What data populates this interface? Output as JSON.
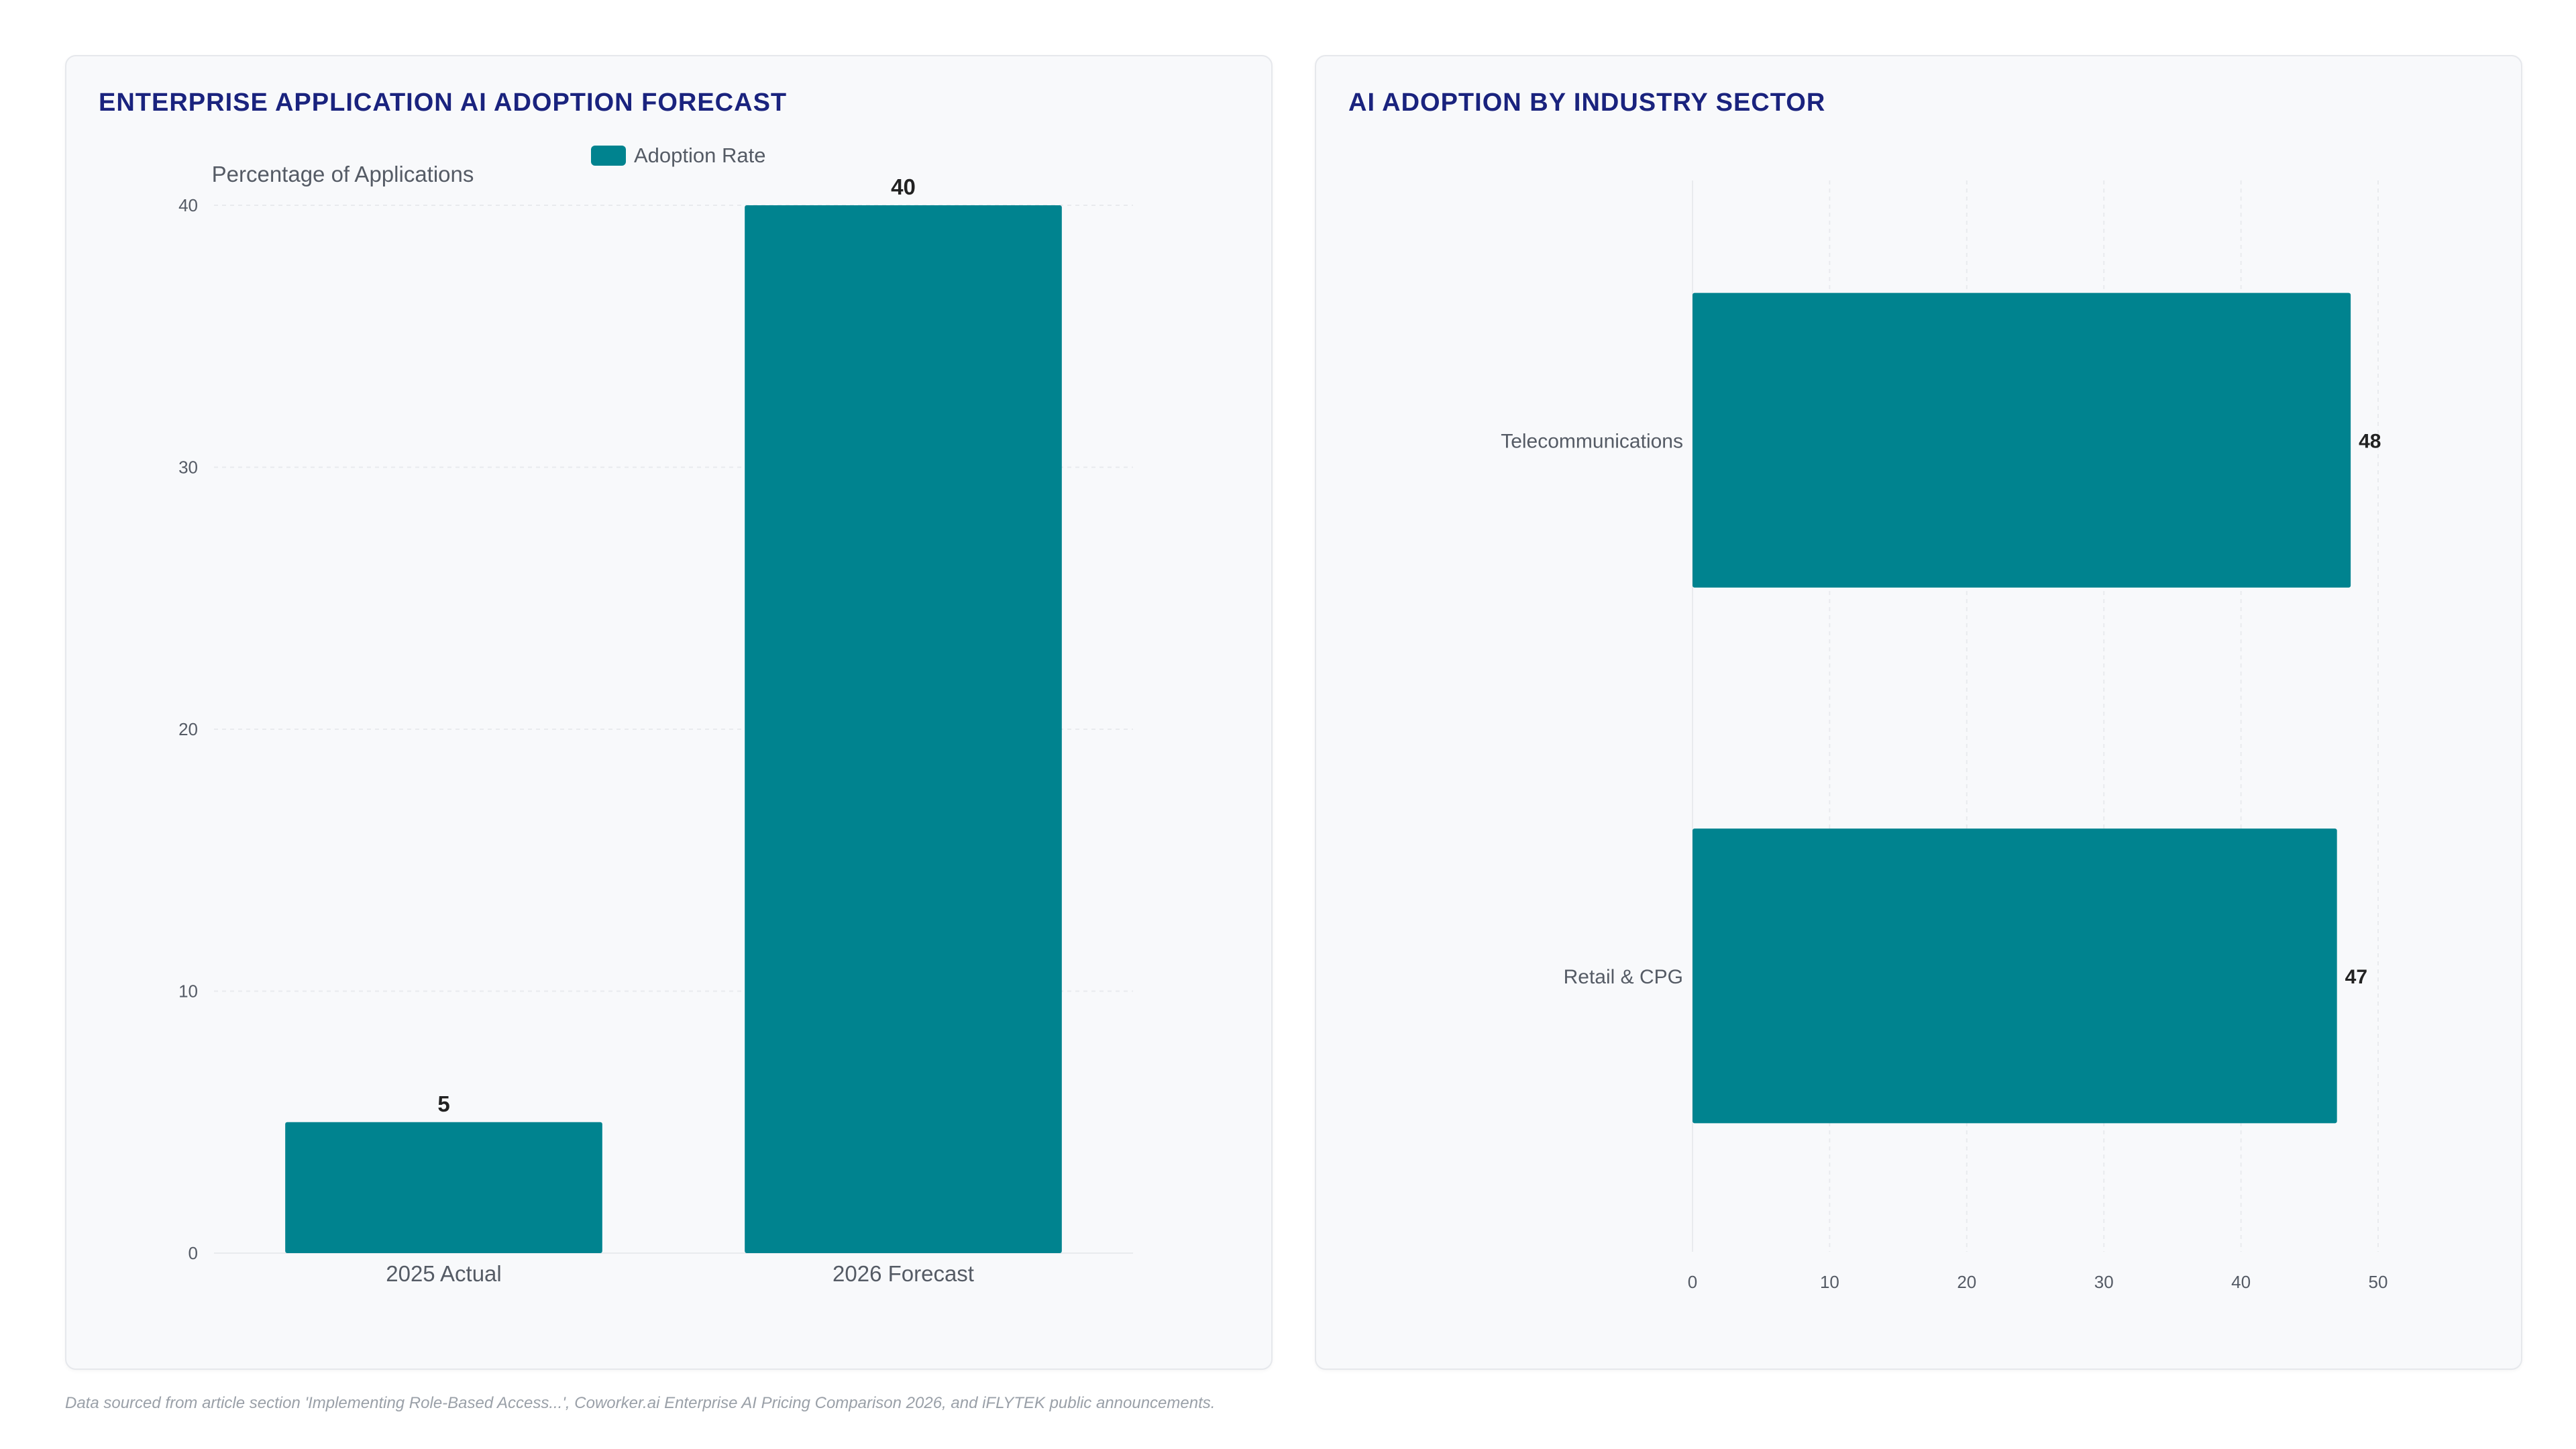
{
  "colors": {
    "bar": "#00838f",
    "title": "#1a237e",
    "axis_text": "#555b65",
    "value_text": "#222222",
    "grid": "#e9ebee"
  },
  "left_chart": {
    "title": "ENTERPRISE APPLICATION AI ADOPTION FORECAST"
  },
  "right_chart": {
    "title": "AI ADOPTION BY INDUSTRY SECTOR"
  },
  "chart_data": [
    {
      "type": "bar",
      "orientation": "vertical",
      "title": "ENTERPRISE APPLICATION AI ADOPTION FORECAST",
      "categories": [
        "2025 Actual",
        "2026 Forecast"
      ],
      "series": [
        {
          "name": "Adoption Rate",
          "values": [
            5,
            40
          ]
        }
      ],
      "ylabel": "Percentage of Applications",
      "xlabel": "",
      "ylim": [
        0,
        40
      ],
      "yticks": [
        0,
        10,
        20,
        30,
        40
      ],
      "legend": "top-center",
      "grid": true,
      "data_labels": true
    },
    {
      "type": "bar",
      "orientation": "horizontal",
      "title": "AI ADOPTION BY INDUSTRY SECTOR",
      "categories": [
        "Telecommunications",
        "Retail & CPG"
      ],
      "values": [
        48,
        47
      ],
      "xlim": [
        0,
        50
      ],
      "xticks": [
        0,
        10,
        20,
        30,
        40,
        50
      ],
      "grid": true,
      "legend": "none",
      "data_labels": true
    }
  ],
  "footnote": "Data sourced from article section 'Implementing Role-Based Access...', Coworker.ai Enterprise AI Pricing Comparison 2026, and iFLYTEK public announcements."
}
